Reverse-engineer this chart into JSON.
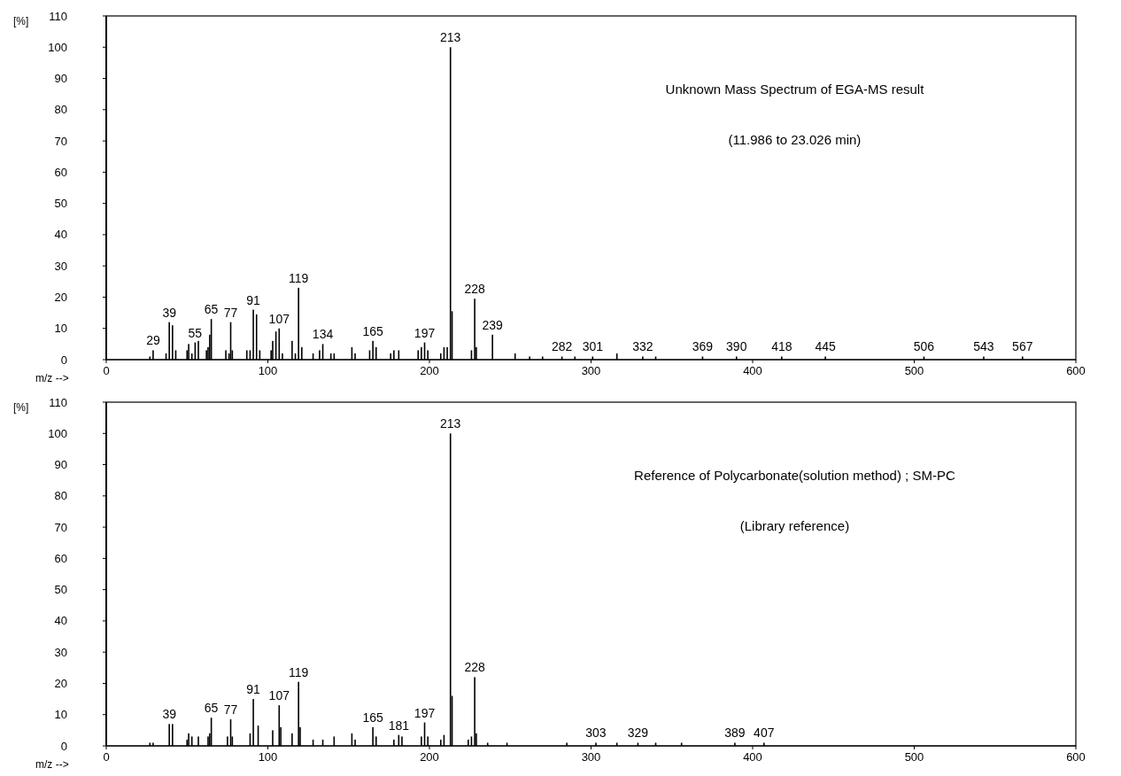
{
  "chart_data": [
    {
      "type": "bar",
      "title": "Unknown Mass Spectrum of EGA-MS result",
      "subtitle": "(11.986 to 23.026 min)",
      "xlabel": "m/z -->",
      "ylabel": "[%]",
      "color": "#000000",
      "x": [
        27,
        29,
        37,
        39,
        41,
        43,
        50,
        51,
        53,
        55,
        57,
        62,
        63,
        64,
        65,
        74,
        76,
        77,
        78,
        87,
        89,
        91,
        93,
        95,
        102,
        103,
        105,
        107,
        109,
        115,
        117,
        119,
        121,
        128,
        132,
        134,
        139,
        141,
        152,
        154,
        163,
        165,
        167,
        176,
        178,
        181,
        193,
        195,
        197,
        199,
        207,
        209,
        211,
        213,
        214,
        226,
        228,
        229,
        239,
        253,
        262,
        270,
        282,
        290,
        301,
        316,
        332,
        340,
        369,
        390,
        418,
        445,
        506,
        543,
        567
      ],
      "values": [
        1,
        3,
        2,
        12,
        11,
        3,
        3,
        5,
        2,
        5.5,
        6,
        3,
        4,
        8,
        13,
        3,
        2,
        12,
        3,
        3,
        3,
        16,
        14.5,
        3,
        3,
        6,
        9,
        10,
        2,
        6,
        2,
        23,
        4,
        2,
        3,
        5,
        2,
        2,
        4,
        2,
        3,
        6,
        4,
        2,
        3,
        3,
        3,
        4,
        5.5,
        3,
        2,
        4,
        4,
        100,
        15.5,
        3,
        19.5,
        4,
        8,
        2,
        1,
        1,
        1,
        1,
        1,
        2,
        1,
        1,
        1,
        1,
        1,
        1,
        1,
        1,
        1
      ],
      "xlim": [
        0,
        600
      ],
      "xticks": [
        0,
        100,
        200,
        300,
        400,
        500,
        600
      ],
      "ylim": [
        0,
        110
      ],
      "yticks": [
        0,
        10,
        20,
        30,
        40,
        50,
        60,
        70,
        80,
        90,
        100,
        110
      ],
      "annotations": [
        {
          "text": "29",
          "x": 29,
          "y": 3
        },
        {
          "text": "39",
          "x": 39,
          "y": 12
        },
        {
          "text": "55",
          "x": 55,
          "y": 5.5
        },
        {
          "text": "65",
          "x": 65,
          "y": 13
        },
        {
          "text": "77",
          "x": 77,
          "y": 12
        },
        {
          "text": "91",
          "x": 91,
          "y": 16
        },
        {
          "text": "107",
          "x": 107,
          "y": 10
        },
        {
          "text": "119",
          "x": 119,
          "y": 23
        },
        {
          "text": "134",
          "x": 134,
          "y": 5
        },
        {
          "text": "165",
          "x": 165,
          "y": 6
        },
        {
          "text": "197",
          "x": 197,
          "y": 5.5
        },
        {
          "text": "213",
          "x": 213,
          "y": 100
        },
        {
          "text": "228",
          "x": 228,
          "y": 19.5
        },
        {
          "text": "239",
          "x": 239,
          "y": 8
        },
        {
          "text": "282",
          "x": 282,
          "y": 1
        },
        {
          "text": "301",
          "x": 301,
          "y": 1
        },
        {
          "text": "332",
          "x": 332,
          "y": 1
        },
        {
          "text": "369",
          "x": 369,
          "y": 1
        },
        {
          "text": "390",
          "x": 390,
          "y": 1
        },
        {
          "text": "418",
          "x": 418,
          "y": 1
        },
        {
          "text": "445",
          "x": 445,
          "y": 1
        },
        {
          "text": "506",
          "x": 506,
          "y": 1
        },
        {
          "text": "543",
          "x": 543,
          "y": 1
        },
        {
          "text": "567",
          "x": 567,
          "y": 1
        }
      ]
    },
    {
      "type": "bar",
      "title": "Reference of Polycarbonate(solution method) ; SM-PC",
      "subtitle": "(Library reference)",
      "xlabel": "m/z -->",
      "ylabel": "[%]",
      "color": "#000000",
      "x": [
        27,
        29,
        39,
        41,
        50,
        51,
        53,
        57,
        63,
        64,
        65,
        75,
        77,
        78,
        89,
        91,
        94,
        103,
        107,
        108,
        115,
        119,
        120,
        128,
        134,
        141,
        152,
        154,
        165,
        167,
        178,
        181,
        183,
        195,
        197,
        199,
        207,
        209,
        213,
        214,
        224,
        226,
        228,
        229,
        236,
        248,
        285,
        303,
        316,
        329,
        340,
        356,
        389,
        407
      ],
      "values": [
        1,
        1,
        7,
        7,
        2,
        4,
        3,
        3,
        3,
        4,
        9,
        3,
        8.5,
        3,
        4,
        15,
        6.5,
        5,
        13,
        6,
        4,
        20.5,
        6,
        2,
        2,
        3,
        4,
        2,
        6,
        3,
        2,
        3.5,
        3,
        3,
        7.5,
        3,
        2,
        3.5,
        100,
        16,
        2,
        3,
        22,
        4,
        1,
        1,
        1,
        1,
        1,
        1,
        1,
        1,
        1,
        1
      ],
      "xlim": [
        0,
        600
      ],
      "xticks": [
        0,
        100,
        200,
        300,
        400,
        500,
        600
      ],
      "ylim": [
        0,
        110
      ],
      "yticks": [
        0,
        10,
        20,
        30,
        40,
        50,
        60,
        70,
        80,
        90,
        100,
        110
      ],
      "annotations": [
        {
          "text": "39",
          "x": 39,
          "y": 7
        },
        {
          "text": "65",
          "x": 65,
          "y": 9
        },
        {
          "text": "77",
          "x": 77,
          "y": 8.5
        },
        {
          "text": "91",
          "x": 91,
          "y": 15
        },
        {
          "text": "107",
          "x": 107,
          "y": 13
        },
        {
          "text": "119",
          "x": 119,
          "y": 20.5
        },
        {
          "text": "165",
          "x": 165,
          "y": 6
        },
        {
          "text": "181",
          "x": 181,
          "y": 3.5
        },
        {
          "text": "197",
          "x": 197,
          "y": 7.5
        },
        {
          "text": "213",
          "x": 213,
          "y": 100
        },
        {
          "text": "228",
          "x": 228,
          "y": 22
        },
        {
          "text": "303",
          "x": 303,
          "y": 1
        },
        {
          "text": "329",
          "x": 329,
          "y": 1
        },
        {
          "text": "389",
          "x": 389,
          "y": 1
        },
        {
          "text": "407",
          "x": 407,
          "y": 1
        }
      ]
    }
  ]
}
